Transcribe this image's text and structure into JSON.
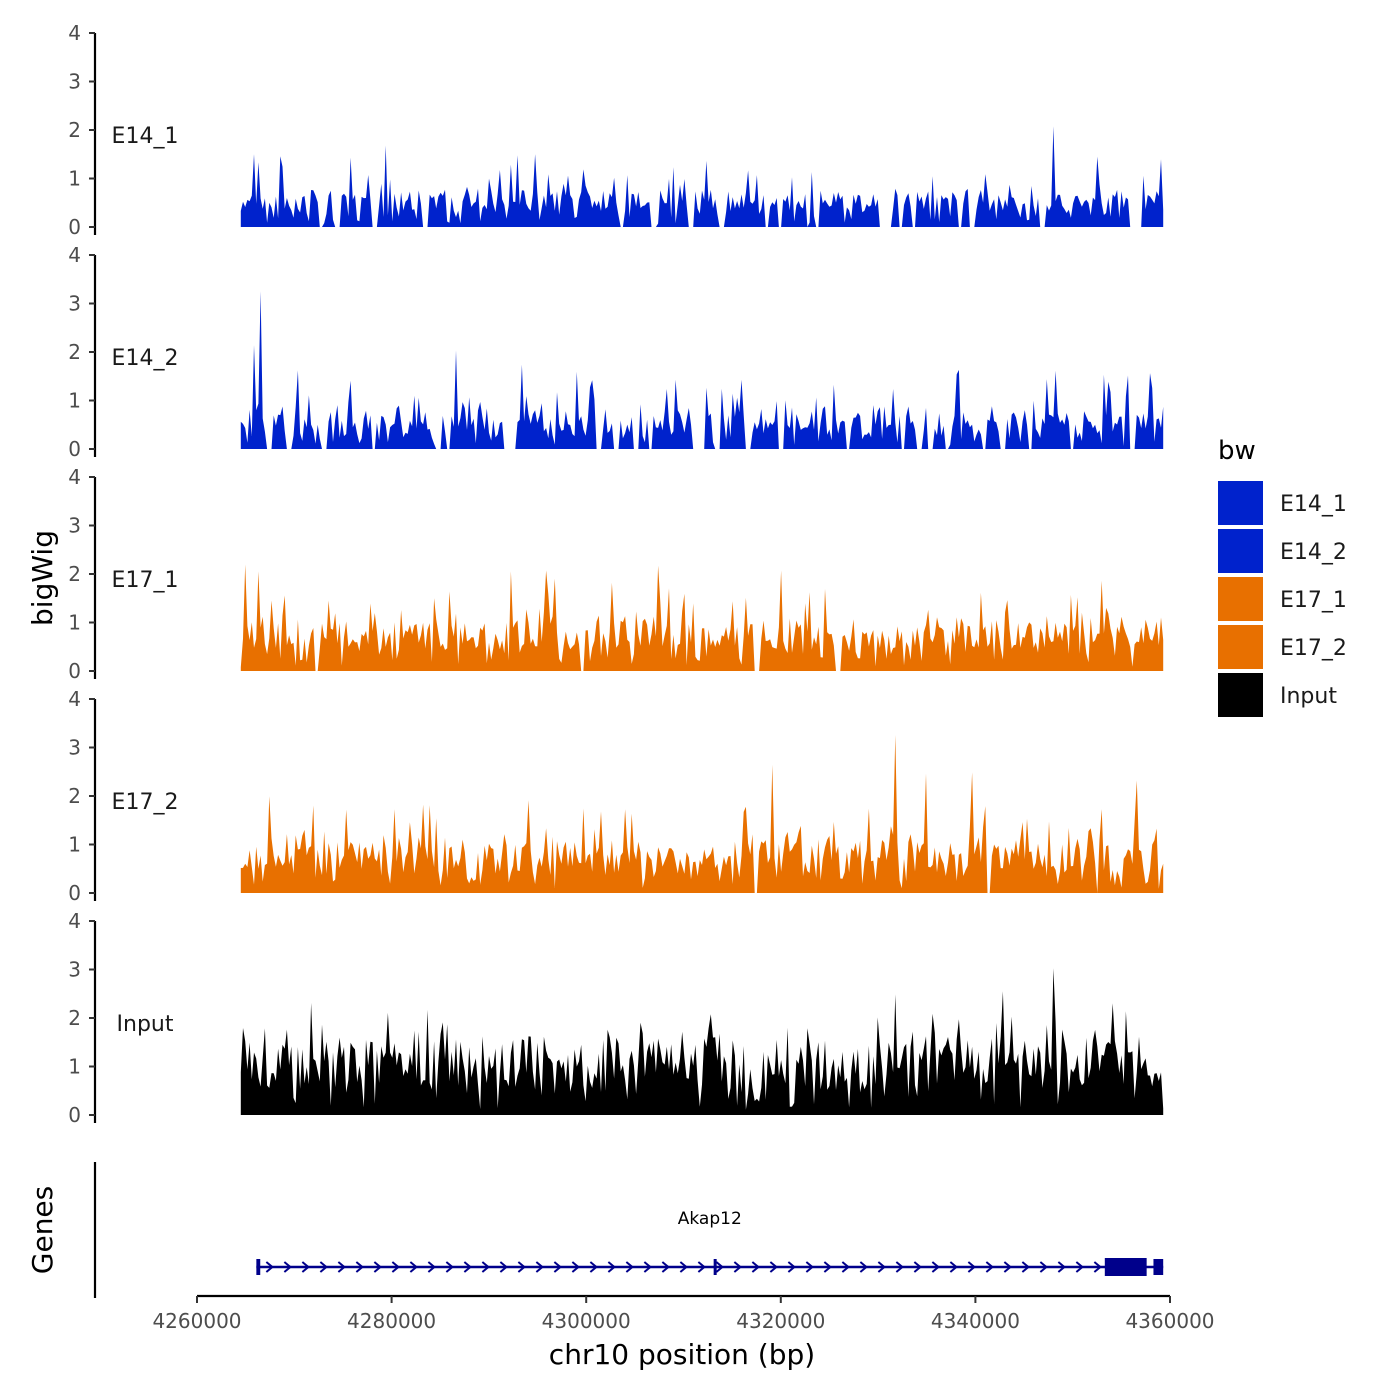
{
  "chart_data": {
    "type": "area",
    "ylabel": "bigWig",
    "xlabel": "chr10 position (bp)",
    "x_range": [
      4264500,
      4359300
    ],
    "xlim": [
      4260000,
      4360000
    ],
    "x_ticks": [
      4260000,
      4280000,
      4300000,
      4320000,
      4340000,
      4360000
    ],
    "x_tick_labels": [
      "4260000",
      "4280000",
      "4300000",
      "4320000",
      "4340000",
      "4360000"
    ],
    "ylim": [
      0,
      4
    ],
    "y_ticks": [
      0,
      1,
      2,
      3,
      4
    ],
    "y_tick_labels": [
      "0",
      "1",
      "2",
      "3",
      "4"
    ],
    "tracks": [
      {
        "name": "E14_1",
        "color": "#0022cc",
        "base": 0.55,
        "noise": 0.55,
        "seed": 11,
        "gap_rate": 0.06,
        "peaks": [
          [
            4265800,
            1.9
          ],
          [
            4268600,
            1.7
          ],
          [
            4279400,
            1.7
          ],
          [
            4294800,
            1.9
          ],
          [
            4299800,
            1.8
          ],
          [
            4312300,
            1.7
          ],
          [
            4323200,
            1.2
          ],
          [
            4341100,
            1.6
          ],
          [
            4348000,
            2.2
          ],
          [
            4352600,
            2.0
          ],
          [
            4359100,
            1.55
          ]
        ]
      },
      {
        "name": "E14_2",
        "color": "#0022cc",
        "base": 0.5,
        "noise": 0.7,
        "seed": 23,
        "gap_rate": 0.06,
        "peaks": [
          [
            4266500,
            3.7
          ],
          [
            4265900,
            2.6
          ],
          [
            4270300,
            2.2
          ],
          [
            4275700,
            2.1
          ],
          [
            4286600,
            2.2
          ],
          [
            4287400,
            1.6
          ],
          [
            4293400,
            1.8
          ],
          [
            4300600,
            1.5
          ],
          [
            4315600,
            1.6
          ],
          [
            4325500,
            1.7
          ],
          [
            4338200,
            2.8
          ],
          [
            4347400,
            1.9
          ],
          [
            4355600,
            2.3
          ],
          [
            4357900,
            1.9
          ]
        ]
      },
      {
        "name": "E17_1",
        "color": "#e87000",
        "base": 0.75,
        "noise": 0.7,
        "seed": 37,
        "gap_rate": 0.02,
        "peaks": [
          [
            4265000,
            2.7
          ],
          [
            4266300,
            2.1
          ],
          [
            4268900,
            2.0
          ],
          [
            4273600,
            2.0
          ],
          [
            4286000,
            2.1
          ],
          [
            4292300,
            2.4
          ],
          [
            4295800,
            2.9
          ],
          [
            4302700,
            2.3
          ],
          [
            4307400,
            2.3
          ],
          [
            4310000,
            2.5
          ],
          [
            4320000,
            2.3
          ],
          [
            4324600,
            2.2
          ],
          [
            4340600,
            1.6
          ],
          [
            4349800,
            1.7
          ]
        ]
      },
      {
        "name": "E17_2",
        "color": "#e87000",
        "base": 0.8,
        "noise": 0.75,
        "seed": 53,
        "gap_rate": 0.02,
        "peaks": [
          [
            4267400,
            2.3
          ],
          [
            4275400,
            2.3
          ],
          [
            4283200,
            2.1
          ],
          [
            4294000,
            2.6
          ],
          [
            4319100,
            2.9
          ],
          [
            4329000,
            2.2
          ],
          [
            4331800,
            3.8
          ],
          [
            4334900,
            2.7
          ],
          [
            4339700,
            2.9
          ],
          [
            4352900,
            2.5
          ],
          [
            4356600,
            2.4
          ]
        ]
      },
      {
        "name": "Input",
        "color": "#000000",
        "base": 1.2,
        "noise": 0.75,
        "seed": 71,
        "gap_rate": 0.0,
        "peaks": [
          [
            4271800,
            2.7
          ],
          [
            4279700,
            3.0
          ],
          [
            4285300,
            2.2
          ],
          [
            4294000,
            2.2
          ],
          [
            4303400,
            2.1
          ],
          [
            4313100,
            2.2
          ],
          [
            4331800,
            2.9
          ],
          [
            4343400,
            2.1
          ],
          [
            4348000,
            3.2
          ],
          [
            4352400,
            2.8
          ],
          [
            4355500,
            2.5
          ]
        ]
      }
    ],
    "genes_track": {
      "label": "Genes",
      "genes": [
        {
          "name": "Akap12",
          "start": 4266100,
          "end": 4359300,
          "strand": "+",
          "color": "#00008b",
          "exons": [
            [
              4266100,
              4266500
            ],
            [
              4313100,
              4313300
            ],
            [
              4353300,
              4357600
            ],
            [
              4358300,
              4359300
            ]
          ]
        }
      ]
    },
    "legend": {
      "title": "bw",
      "position": "right",
      "items": [
        {
          "label": "E14_1",
          "color": "#0022cc"
        },
        {
          "label": "E14_2",
          "color": "#0022cc"
        },
        {
          "label": "E17_1",
          "color": "#e87000"
        },
        {
          "label": "E17_2",
          "color": "#e87000"
        },
        {
          "label": "Input",
          "color": "#000000"
        }
      ]
    }
  }
}
